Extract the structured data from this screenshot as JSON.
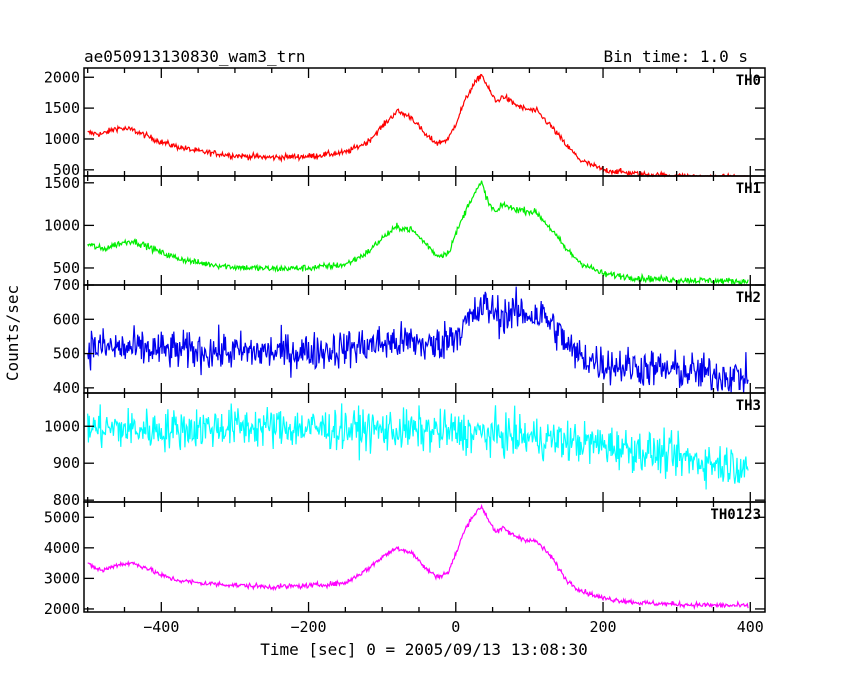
{
  "chart_data": {
    "type": "line",
    "title": "ae050913130830_wam3_trn",
    "bin_time_label": "Bin time: 1.0 s",
    "xlabel": "Time [sec] 0 = 2005/09/13 13:08:30",
    "ylabel": "Counts/sec",
    "xlim": [
      -505,
      420
    ],
    "xticks": [
      -400,
      -200,
      0,
      200,
      400
    ],
    "panels": [
      {
        "name": "TH0",
        "color": "#ff0000",
        "ylim": [
          400,
          2150
        ],
        "yticks": [
          500,
          1000,
          1500,
          2000
        ],
        "noise": 35,
        "x": [
          -500,
          -480,
          -460,
          -440,
          -420,
          -400,
          -380,
          -350,
          -300,
          -250,
          -200,
          -150,
          -120,
          -100,
          -80,
          -60,
          -40,
          -25,
          -10,
          0,
          10,
          20,
          35,
          45,
          55,
          65,
          75,
          90,
          110,
          130,
          150,
          170,
          200,
          250,
          300,
          350,
          400
        ],
        "y": [
          1100,
          1080,
          1180,
          1150,
          1050,
          950,
          880,
          800,
          730,
          700,
          720,
          780,
          950,
          1200,
          1450,
          1350,
          1050,
          930,
          1000,
          1250,
          1550,
          1800,
          2050,
          1800,
          1600,
          1700,
          1600,
          1500,
          1450,
          1200,
          900,
          650,
          500,
          430,
          400,
          380,
          370
        ]
      },
      {
        "name": "TH1",
        "color": "#00ee00",
        "ylim": [
          300,
          1580
        ],
        "yticks": [
          500,
          1000,
          1500
        ],
        "noise": 28,
        "x": [
          -500,
          -480,
          -460,
          -440,
          -420,
          -400,
          -380,
          -350,
          -300,
          -250,
          -200,
          -150,
          -120,
          -100,
          -80,
          -60,
          -40,
          -25,
          -10,
          0,
          10,
          20,
          35,
          45,
          55,
          65,
          75,
          90,
          110,
          130,
          150,
          170,
          200,
          250,
          300,
          350,
          400
        ],
        "y": [
          780,
          720,
          780,
          820,
          760,
          680,
          620,
          560,
          510,
          490,
          500,
          540,
          680,
          850,
          980,
          950,
          780,
          640,
          680,
          900,
          1100,
          1300,
          1500,
          1250,
          1150,
          1250,
          1200,
          1180,
          1150,
          950,
          720,
          560,
          430,
          380,
          360,
          350,
          340
        ]
      },
      {
        "name": "TH2",
        "color": "#0000ee",
        "ylim": [
          385,
          700
        ],
        "yticks": [
          400,
          500,
          600,
          700
        ],
        "noise": 40,
        "x": [
          -500,
          -400,
          -300,
          -200,
          -150,
          -100,
          -60,
          -30,
          0,
          20,
          40,
          60,
          80,
          100,
          120,
          140,
          160,
          200,
          250,
          300,
          350,
          400
        ],
        "y": [
          520,
          510,
          505,
          505,
          515,
          530,
          535,
          520,
          560,
          600,
          640,
          610,
          620,
          615,
          610,
          560,
          500,
          470,
          460,
          450,
          440,
          430
        ]
      },
      {
        "name": "TH3",
        "color": "#00ffff",
        "ylim": [
          795,
          1090
        ],
        "yticks": [
          800,
          900,
          1000
        ],
        "noise": 40,
        "x": [
          -500,
          -400,
          -300,
          -200,
          -100,
          0,
          100,
          150,
          200,
          250,
          300,
          350,
          400
        ],
        "y": [
          995,
          990,
          1000,
          995,
          990,
          985,
          970,
          960,
          950,
          935,
          915,
          900,
          895
        ]
      },
      {
        "name": "TH0123",
        "color": "#ff00ff",
        "ylim": [
          1900,
          5500
        ],
        "yticks": [
          2000,
          3000,
          4000,
          5000
        ],
        "noise": 60,
        "x": [
          -500,
          -480,
          -460,
          -440,
          -420,
          -400,
          -380,
          -350,
          -300,
          -250,
          -200,
          -150,
          -120,
          -100,
          -80,
          -60,
          -40,
          -25,
          -10,
          0,
          10,
          20,
          35,
          45,
          55,
          65,
          75,
          90,
          110,
          130,
          150,
          170,
          200,
          250,
          300,
          350,
          400
        ],
        "y": [
          3450,
          3250,
          3450,
          3500,
          3350,
          3100,
          2950,
          2850,
          2780,
          2720,
          2760,
          2850,
          3300,
          3700,
          4000,
          3850,
          3300,
          3050,
          3200,
          3800,
          4450,
          4950,
          5350,
          4900,
          4500,
          4650,
          4450,
          4300,
          4200,
          3700,
          2950,
          2600,
          2350,
          2200,
          2150,
          2120,
          2100
        ]
      }
    ]
  }
}
